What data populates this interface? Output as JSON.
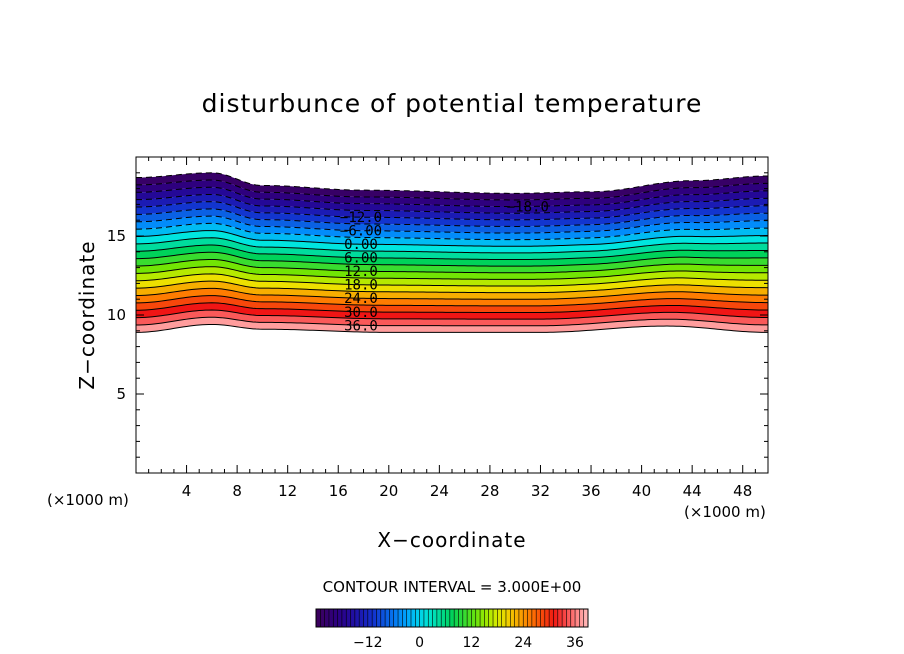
{
  "chart_data": {
    "type": "contour",
    "title": "disturbunce of potential temperature",
    "xlabel": "X−coordinate",
    "ylabel": "Z−coordinate",
    "x_unit_left": "(×1000 m)",
    "x_unit_right": "(×1000 m)",
    "xlim": [
      0,
      50
    ],
    "ylim": [
      0,
      20
    ],
    "x_ticks": [
      4,
      8,
      12,
      16,
      20,
      24,
      28,
      32,
      36,
      40,
      44,
      48
    ],
    "y_ticks": [
      5,
      10,
      15
    ],
    "contour_interval_label": "CONTOUR INTERVAL = 3.000E+00",
    "contour_interval": 3,
    "level_range": [
      -24,
      39
    ],
    "colorbar_ticks": [
      "−12",
      "0",
      "12",
      "24",
      "36"
    ],
    "colorbar_tick_values": [
      -12,
      0,
      12,
      24,
      36
    ],
    "contour_labels": [
      "−18.0",
      "−12.0",
      "−6.00",
      "0.00",
      "6.00",
      "12.0",
      "18.0",
      "24.0",
      "30.0",
      "36.0"
    ],
    "contour_label_values": [
      -18,
      -12,
      -6,
      0,
      6,
      12,
      18,
      24,
      30,
      36
    ],
    "negative_contours": "dashed",
    "layer_bottom_z": [
      [
        0,
        8.9
      ],
      [
        6,
        9.4
      ],
      [
        10,
        9.1
      ],
      [
        20,
        8.9
      ],
      [
        32,
        8.9
      ],
      [
        42,
        9.3
      ],
      [
        50,
        8.9
      ]
    ],
    "layer_top_z": [
      [
        0,
        18.7
      ],
      [
        6,
        19.0
      ],
      [
        10,
        18.2
      ],
      [
        18,
        17.9
      ],
      [
        30,
        17.7
      ],
      [
        36,
        17.8
      ],
      [
        44,
        18.5
      ],
      [
        50,
        18.8
      ]
    ]
  }
}
